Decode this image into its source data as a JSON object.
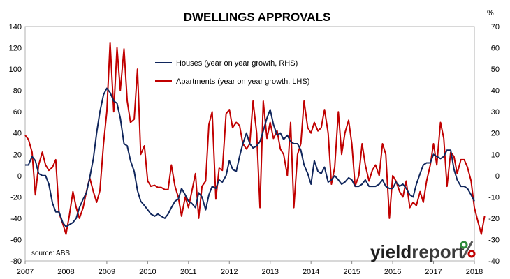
{
  "chart_data": {
    "type": "line",
    "title": "DWELLINGS APPROVALS",
    "left_unit": "",
    "right_unit": "%",
    "left_axis": {
      "min": -80,
      "max": 140,
      "step": 20,
      "ticks": [
        "140",
        "120",
        "100",
        "80",
        "60",
        "40",
        "20",
        "0",
        "-20",
        "-40",
        "-60",
        "-80"
      ]
    },
    "right_axis": {
      "min": -40,
      "max": 70,
      "step": 10,
      "ticks": [
        "70",
        "60",
        "50",
        "40",
        "30",
        "20",
        "10",
        "0",
        "-10",
        "-20",
        "-30",
        "-40"
      ]
    },
    "x_axis": {
      "min": 2007,
      "max": 2018,
      "ticks": [
        "2007",
        "2008",
        "2009",
        "2010",
        "2011",
        "2012",
        "2013",
        "2014",
        "2015",
        "2016",
        "2017",
        "2018"
      ]
    },
    "grid": false,
    "legend_position": "top-center",
    "source": "source: ABS",
    "logo": {
      "text_a": "yield",
      "text_b": "report",
      "mark": "%"
    },
    "series": [
      {
        "name": "Houses (year on year growth, RHS)",
        "axis": "right",
        "color": "#10265c",
        "points": [
          [
            2007.0,
            5
          ],
          [
            2007.08,
            5
          ],
          [
            2007.17,
            9
          ],
          [
            2007.25,
            7
          ],
          [
            2007.33,
            1
          ],
          [
            2007.42,
            0
          ],
          [
            2007.5,
            0
          ],
          [
            2007.58,
            -4
          ],
          [
            2007.67,
            -13
          ],
          [
            2007.75,
            -17
          ],
          [
            2007.83,
            -17
          ],
          [
            2007.92,
            -22
          ],
          [
            2008.0,
            -24
          ],
          [
            2008.08,
            -23
          ],
          [
            2008.17,
            -22
          ],
          [
            2008.25,
            -20
          ],
          [
            2008.33,
            -15
          ],
          [
            2008.42,
            -11
          ],
          [
            2008.5,
            -8
          ],
          [
            2008.58,
            -1
          ],
          [
            2008.67,
            8
          ],
          [
            2008.75,
            20
          ],
          [
            2008.83,
            30
          ],
          [
            2008.92,
            38
          ],
          [
            2009.0,
            41
          ],
          [
            2009.08,
            39
          ],
          [
            2009.17,
            35
          ],
          [
            2009.25,
            34
          ],
          [
            2009.33,
            27
          ],
          [
            2009.42,
            15
          ],
          [
            2009.5,
            14
          ],
          [
            2009.58,
            7
          ],
          [
            2009.67,
            2
          ],
          [
            2009.75,
            -7
          ],
          [
            2009.83,
            -12
          ],
          [
            2009.92,
            -14
          ],
          [
            2010.0,
            -16
          ],
          [
            2010.08,
            -18
          ],
          [
            2010.17,
            -19
          ],
          [
            2010.25,
            -18
          ],
          [
            2010.33,
            -19
          ],
          [
            2010.42,
            -20
          ],
          [
            2010.5,
            -18
          ],
          [
            2010.58,
            -15
          ],
          [
            2010.67,
            -12
          ],
          [
            2010.75,
            -11
          ],
          [
            2010.83,
            -6
          ],
          [
            2010.92,
            -9
          ],
          [
            2011.0,
            -12
          ],
          [
            2011.08,
            -13
          ],
          [
            2011.17,
            -15
          ],
          [
            2011.25,
            -8
          ],
          [
            2011.33,
            -10
          ],
          [
            2011.42,
            -16
          ],
          [
            2011.5,
            -9
          ],
          [
            2011.58,
            -5
          ],
          [
            2011.67,
            -6
          ],
          [
            2011.75,
            -2
          ],
          [
            2011.83,
            -3
          ],
          [
            2011.92,
            0
          ],
          [
            2012.0,
            7
          ],
          [
            2012.08,
            3
          ],
          [
            2012.17,
            2
          ],
          [
            2012.25,
            9
          ],
          [
            2012.33,
            15
          ],
          [
            2012.42,
            20
          ],
          [
            2012.5,
            15
          ],
          [
            2012.58,
            13
          ],
          [
            2012.67,
            14
          ],
          [
            2012.75,
            16
          ],
          [
            2012.83,
            21
          ],
          [
            2012.92,
            27
          ],
          [
            2013.0,
            31
          ],
          [
            2013.08,
            24
          ],
          [
            2013.17,
            19
          ],
          [
            2013.25,
            20
          ],
          [
            2013.33,
            17
          ],
          [
            2013.42,
            19
          ],
          [
            2013.5,
            16
          ],
          [
            2013.58,
            15
          ],
          [
            2013.67,
            15
          ],
          [
            2013.75,
            12
          ],
          [
            2013.83,
            5
          ],
          [
            2013.92,
            1
          ],
          [
            2014.0,
            -4
          ],
          [
            2014.08,
            7
          ],
          [
            2014.17,
            2
          ],
          [
            2014.25,
            1
          ],
          [
            2014.33,
            4
          ],
          [
            2014.42,
            -3
          ],
          [
            2014.5,
            -2
          ],
          [
            2014.58,
            0
          ],
          [
            2014.67,
            -2
          ],
          [
            2014.75,
            -4
          ],
          [
            2014.83,
            -3
          ],
          [
            2014.92,
            -1
          ],
          [
            2015.0,
            -2
          ],
          [
            2015.08,
            -5
          ],
          [
            2015.17,
            -5
          ],
          [
            2015.25,
            -4
          ],
          [
            2015.33,
            -2
          ],
          [
            2015.42,
            -5
          ],
          [
            2015.5,
            -5
          ],
          [
            2015.58,
            -5
          ],
          [
            2015.67,
            -4
          ],
          [
            2015.75,
            -2
          ],
          [
            2015.83,
            -5
          ],
          [
            2015.92,
            -6
          ],
          [
            2016.0,
            -6
          ],
          [
            2016.08,
            -3
          ],
          [
            2016.17,
            -5
          ],
          [
            2016.25,
            -4
          ],
          [
            2016.33,
            -6
          ],
          [
            2016.42,
            -9
          ],
          [
            2016.5,
            -10
          ],
          [
            2016.58,
            -4
          ],
          [
            2016.67,
            1
          ],
          [
            2016.75,
            5
          ],
          [
            2016.83,
            6
          ],
          [
            2016.92,
            6
          ],
          [
            2017.0,
            10
          ],
          [
            2017.08,
            9
          ],
          [
            2017.17,
            8
          ],
          [
            2017.25,
            9
          ],
          [
            2017.33,
            12
          ],
          [
            2017.42,
            12
          ],
          [
            2017.5,
            3
          ],
          [
            2017.58,
            -2
          ],
          [
            2017.67,
            -5
          ],
          [
            2017.75,
            -5
          ],
          [
            2017.83,
            -6
          ],
          [
            2017.92,
            -9
          ],
          [
            2018.0,
            -12
          ]
        ]
      },
      {
        "name": "Apartments (year on year growth, LHS)",
        "axis": "left",
        "color": "#c00000",
        "points": [
          [
            2007.0,
            38
          ],
          [
            2007.08,
            34
          ],
          [
            2007.17,
            22
          ],
          [
            2007.25,
            -18
          ],
          [
            2007.33,
            10
          ],
          [
            2007.42,
            22
          ],
          [
            2007.5,
            10
          ],
          [
            2007.58,
            5
          ],
          [
            2007.67,
            8
          ],
          [
            2007.75,
            15
          ],
          [
            2007.83,
            -35
          ],
          [
            2007.92,
            -45
          ],
          [
            2008.0,
            -55
          ],
          [
            2008.08,
            -38
          ],
          [
            2008.17,
            -15
          ],
          [
            2008.25,
            -30
          ],
          [
            2008.33,
            -40
          ],
          [
            2008.42,
            -30
          ],
          [
            2008.5,
            -15
          ],
          [
            2008.58,
            -2
          ],
          [
            2008.67,
            -15
          ],
          [
            2008.75,
            -25
          ],
          [
            2008.83,
            -14
          ],
          [
            2008.92,
            30
          ],
          [
            2009.0,
            60
          ],
          [
            2009.08,
            125
          ],
          [
            2009.17,
            60
          ],
          [
            2009.25,
            120
          ],
          [
            2009.33,
            80
          ],
          [
            2009.42,
            119
          ],
          [
            2009.5,
            70
          ],
          [
            2009.58,
            50
          ],
          [
            2009.67,
            53
          ],
          [
            2009.75,
            100
          ],
          [
            2009.83,
            20
          ],
          [
            2009.92,
            28
          ],
          [
            2010.0,
            -5
          ],
          [
            2010.08,
            -10
          ],
          [
            2010.17,
            -9
          ],
          [
            2010.25,
            -11
          ],
          [
            2010.33,
            -11
          ],
          [
            2010.42,
            -13
          ],
          [
            2010.5,
            -13
          ],
          [
            2010.58,
            10
          ],
          [
            2010.67,
            -10
          ],
          [
            2010.75,
            -20
          ],
          [
            2010.83,
            -38
          ],
          [
            2010.92,
            -20
          ],
          [
            2011.0,
            -30
          ],
          [
            2011.08,
            -15
          ],
          [
            2011.17,
            2
          ],
          [
            2011.25,
            -40
          ],
          [
            2011.33,
            -10
          ],
          [
            2011.42,
            -5
          ],
          [
            2011.5,
            48
          ],
          [
            2011.58,
            60
          ],
          [
            2011.67,
            -22
          ],
          [
            2011.75,
            7
          ],
          [
            2011.83,
            5
          ],
          [
            2011.92,
            58
          ],
          [
            2012.0,
            62
          ],
          [
            2012.08,
            45
          ],
          [
            2012.17,
            50
          ],
          [
            2012.25,
            47
          ],
          [
            2012.33,
            30
          ],
          [
            2012.42,
            25
          ],
          [
            2012.5,
            30
          ],
          [
            2012.58,
            70
          ],
          [
            2012.67,
            40
          ],
          [
            2012.75,
            -30
          ],
          [
            2012.83,
            70
          ],
          [
            2012.92,
            35
          ],
          [
            2013.0,
            50
          ],
          [
            2013.08,
            35
          ],
          [
            2013.17,
            42
          ],
          [
            2013.25,
            25
          ],
          [
            2013.33,
            20
          ],
          [
            2013.42,
            0
          ],
          [
            2013.5,
            50
          ],
          [
            2013.58,
            -30
          ],
          [
            2013.67,
            20
          ],
          [
            2013.75,
            30
          ],
          [
            2013.83,
            70
          ],
          [
            2013.92,
            45
          ],
          [
            2014.0,
            40
          ],
          [
            2014.08,
            50
          ],
          [
            2014.17,
            42
          ],
          [
            2014.25,
            45
          ],
          [
            2014.33,
            62
          ],
          [
            2014.42,
            40
          ],
          [
            2014.5,
            -8
          ],
          [
            2014.58,
            8
          ],
          [
            2014.67,
            60
          ],
          [
            2014.75,
            20
          ],
          [
            2014.83,
            40
          ],
          [
            2014.92,
            52
          ],
          [
            2015.0,
            30
          ],
          [
            2015.08,
            -10
          ],
          [
            2015.17,
            0
          ],
          [
            2015.25,
            30
          ],
          [
            2015.33,
            10
          ],
          [
            2015.42,
            -5
          ],
          [
            2015.5,
            5
          ],
          [
            2015.58,
            10
          ],
          [
            2015.67,
            0
          ],
          [
            2015.75,
            30
          ],
          [
            2015.83,
            20
          ],
          [
            2015.92,
            -40
          ],
          [
            2016.0,
            0
          ],
          [
            2016.08,
            -5
          ],
          [
            2016.17,
            -15
          ],
          [
            2016.25,
            -20
          ],
          [
            2016.33,
            -5
          ],
          [
            2016.42,
            -30
          ],
          [
            2016.5,
            -25
          ],
          [
            2016.58,
            -28
          ],
          [
            2016.67,
            -15
          ],
          [
            2016.75,
            -25
          ],
          [
            2016.83,
            -5
          ],
          [
            2016.92,
            10
          ],
          [
            2017.0,
            30
          ],
          [
            2017.08,
            10
          ],
          [
            2017.17,
            50
          ],
          [
            2017.25,
            35
          ],
          [
            2017.33,
            -10
          ],
          [
            2017.42,
            22
          ],
          [
            2017.5,
            18
          ],
          [
            2017.58,
            2
          ],
          [
            2017.67,
            15
          ],
          [
            2017.75,
            15
          ],
          [
            2017.83,
            8
          ],
          [
            2017.92,
            -5
          ],
          [
            2018.0,
            -30
          ],
          [
            2018.08,
            -42
          ],
          [
            2018.17,
            -55
          ],
          [
            2018.25,
            -38
          ]
        ]
      }
    ]
  }
}
